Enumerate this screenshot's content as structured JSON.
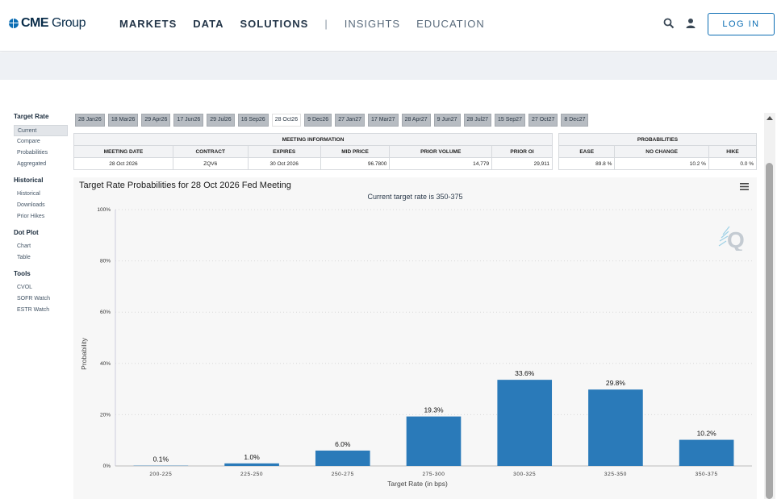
{
  "header": {
    "logo_bold": "CME",
    "logo_rest": " Group",
    "nav_items": [
      "MARKETS",
      "DATA",
      "SOLUTIONS"
    ],
    "separator": "|",
    "nav_light": [
      "INSIGHTS",
      "EDUCATION"
    ],
    "login_label": "LOG IN",
    "icons": [
      "search-icon",
      "user-icon"
    ]
  },
  "sidebar": {
    "groups": [
      {
        "title": "Target Rate",
        "items": [
          "Current",
          "Compare",
          "Probabilities",
          "Aggregated"
        ],
        "active": 0
      },
      {
        "title": "Historical",
        "items": [
          "Historical",
          "Downloads",
          "Prior Hikes"
        ]
      },
      {
        "title": "Dot Plot",
        "items": [
          "Chart",
          "Table"
        ]
      },
      {
        "title": "Tools",
        "items": [
          "CVOL",
          "SOFR Watch",
          "ESTR Watch"
        ]
      }
    ]
  },
  "tabs": {
    "items": [
      "28 Jan26",
      "18 Mar26",
      "29 Apr26",
      "17 Jun26",
      "29 Jul26",
      "16 Sep26",
      "28 Oct26",
      "9 Dec26",
      "27 Jan27",
      "17 Mar27",
      "28 Apr27",
      "9 Jun27",
      "28 Jul27",
      "15 Sep27",
      "27 Oct27",
      "8 Dec27"
    ],
    "active": "28 Oct26"
  },
  "meeting_info": {
    "title": "MEETING INFORMATION",
    "headers": [
      "MEETING DATE",
      "CONTRACT",
      "EXPIRES",
      "MID PRICE",
      "PRIOR VOLUME",
      "PRIOR OI"
    ],
    "row": [
      "28 Oct 2026",
      "ZQV6",
      "30 Oct 2026",
      "96.7800",
      "14,779",
      "29,911"
    ]
  },
  "probabilities": {
    "title": "PROBABILITIES",
    "headers": [
      "EASE",
      "NO CHANGE",
      "HIKE"
    ],
    "row": [
      "89.8 %",
      "10.2 %",
      "0.0 %"
    ]
  },
  "chart": {
    "title": "Target Rate Probabilities for 28 Oct 2026 Fed Meeting",
    "subtitle": "Current target rate is 350-375",
    "menu_icon": "hamburger-menu-icon",
    "bar_color": "#2a7ab9"
  },
  "chart_data": {
    "type": "bar",
    "categories": [
      "200-225",
      "225-250",
      "250-275",
      "275-300",
      "300-325",
      "325-350",
      "350-375"
    ],
    "values": [
      0.1,
      1.0,
      6.0,
      19.3,
      33.6,
      29.8,
      10.2
    ],
    "data_labels": [
      "0.1%",
      "1.0%",
      "6.0%",
      "19.3%",
      "33.6%",
      "29.8%",
      "10.2%"
    ],
    "title": "Target Rate Probabilities for 28 Oct 2026 Fed Meeting",
    "subtitle": "Current target rate is 350-375",
    "xlabel": "Target Rate (in bps)",
    "ylabel": "Probability",
    "ylim": [
      0,
      100
    ],
    "yticks": [
      "0%",
      "20%",
      "40%",
      "60%",
      "80%",
      "100%"
    ],
    "ytick_values": [
      0,
      20,
      40,
      60,
      80,
      100
    ],
    "grid": true
  }
}
